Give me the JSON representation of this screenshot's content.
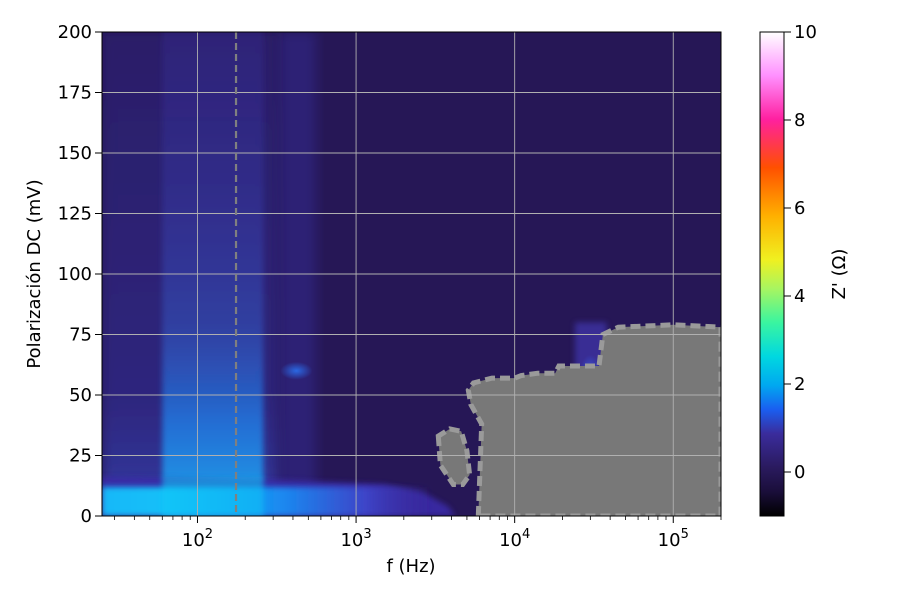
{
  "chart_data": {
    "type": "heatmap",
    "title": "",
    "xlabel": "f (Hz)",
    "ylabel": "Polarización DC (mV)",
    "colorbar_label": "Z' (Ω)",
    "x_scale": "log",
    "xlim": [
      25,
      200000
    ],
    "ylim": [
      0,
      200
    ],
    "x_ticks": [
      100,
      1000,
      10000,
      100000
    ],
    "x_tick_labels": [
      {
        "base": "10",
        "exp": "2"
      },
      {
        "base": "10",
        "exp": "3"
      },
      {
        "base": "10",
        "exp": "4"
      },
      {
        "base": "10",
        "exp": "5"
      }
    ],
    "y_ticks": [
      0,
      25,
      50,
      75,
      100,
      125,
      150,
      175,
      200
    ],
    "y_tick_labels": [
      "0",
      "25",
      "50",
      "75",
      "100",
      "125",
      "150",
      "175",
      "200"
    ],
    "grid": true,
    "colorbar": {
      "colormap": "gist_ncar-like",
      "range": [
        -1,
        10
      ],
      "ticks": [
        0,
        2,
        4,
        6,
        8,
        10
      ],
      "tick_labels": [
        "0",
        "2",
        "4",
        "6",
        "8",
        "10"
      ]
    },
    "reference_line": {
      "x": 175,
      "style": "dashed",
      "color": "#808080"
    },
    "background_value": 0.4,
    "features": [
      {
        "name": "low-bias band",
        "f_range": [
          25,
          3000
        ],
        "v_range": [
          0,
          12
        ],
        "value": 2.5
      },
      {
        "name": "column near 100 Hz",
        "f_range": [
          60,
          260
        ],
        "v_range": [
          0,
          200
        ],
        "value": 1.0
      },
      {
        "name": "spot near 420 Hz",
        "f": 420,
        "v": 60,
        "value": 1.5
      },
      {
        "name": "spot near 30 kHz",
        "f": 30000,
        "v": 60,
        "value": 2.0
      }
    ],
    "masked_region": {
      "color": "#787878",
      "boundary": [
        [
          5900,
          0
        ],
        [
          6200,
          38
        ],
        [
          5300,
          46
        ],
        [
          5100,
          52
        ],
        [
          5500,
          55
        ],
        [
          7200,
          57
        ],
        [
          10000,
          57
        ],
        [
          11000,
          58
        ],
        [
          14000,
          59
        ],
        [
          18000,
          59
        ],
        [
          19000,
          62
        ],
        [
          34000,
          62
        ],
        [
          36000,
          75
        ],
        [
          45000,
          78
        ],
        [
          100000,
          79
        ],
        [
          200000,
          78
        ],
        [
          200000,
          0
        ]
      ],
      "island": [
        [
          3300,
          33
        ],
        [
          3400,
          21
        ],
        [
          4100,
          13
        ],
        [
          4700,
          13
        ],
        [
          5200,
          17
        ],
        [
          5000,
          27
        ],
        [
          4600,
          35
        ],
        [
          3900,
          36
        ]
      ]
    }
  }
}
